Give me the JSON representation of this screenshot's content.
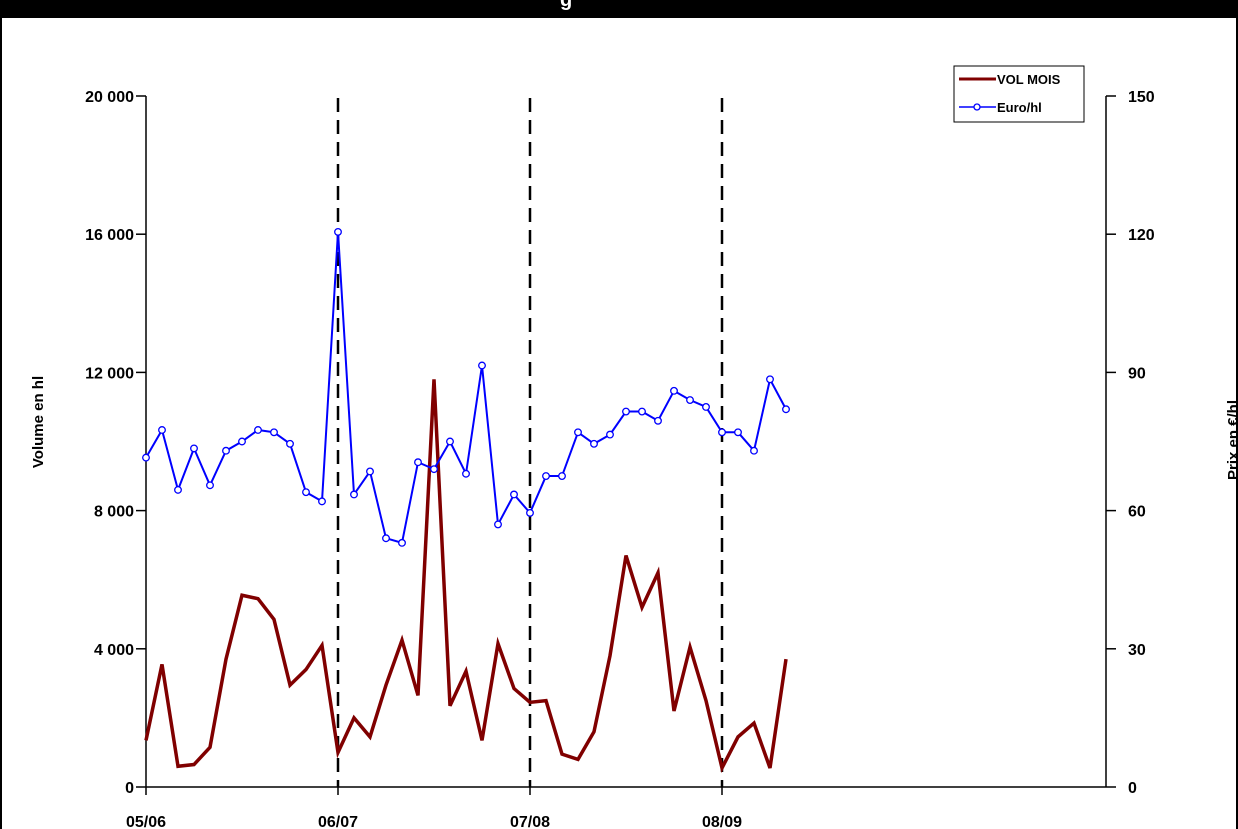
{
  "chart_data": {
    "type": "line",
    "title": "g",
    "y_left_label": "Volume en hl",
    "y_right_label": "Prix en €/hl",
    "y_left_range": [
      0,
      20000
    ],
    "y_right_range": [
      0,
      150
    ],
    "y_left_ticks": [
      "0",
      "4 000",
      "8 000",
      "12 000",
      "16 000",
      "20 000"
    ],
    "y_right_ticks": [
      "0",
      "30",
      "60",
      "90",
      "120",
      "150"
    ],
    "x_tick_labels": [
      "05/06",
      "06/07",
      "07/08",
      "08/09"
    ],
    "x_range": [
      0,
      60
    ],
    "period_dividers": [
      12,
      24,
      36
    ],
    "legend_position": "top-right",
    "series": [
      {
        "name": "VOL MOIS",
        "axis": "left",
        "color": "#800000",
        "markers": false,
        "values": [
          1350,
          3550,
          600,
          650,
          1150,
          3700,
          5550,
          5450,
          4850,
          2950,
          3400,
          4100,
          1000,
          2000,
          1450,
          2950,
          4250,
          2650,
          11800,
          2350,
          3350,
          1350,
          4150,
          2850,
          2450,
          2500,
          950,
          800,
          1600,
          3800,
          6700,
          5200,
          6200,
          2200,
          4050,
          2500,
          550,
          1450,
          1850,
          550,
          3700
        ]
      },
      {
        "name": "Euro/hl",
        "axis": "right",
        "color": "#0000ff",
        "markers": true,
        "values": [
          71.5,
          77.5,
          64.5,
          73.5,
          65.5,
          73,
          75,
          77.5,
          77,
          74.5,
          64,
          62,
          120.5,
          63.5,
          68.5,
          54,
          53,
          70.5,
          69,
          75,
          68,
          91.5,
          57,
          63.5,
          59.5,
          67.5,
          67.5,
          77,
          74.5,
          76.5,
          81.5,
          81.5,
          79.5,
          86,
          84,
          82.5,
          77,
          77,
          73,
          88.5,
          82
        ]
      }
    ]
  }
}
